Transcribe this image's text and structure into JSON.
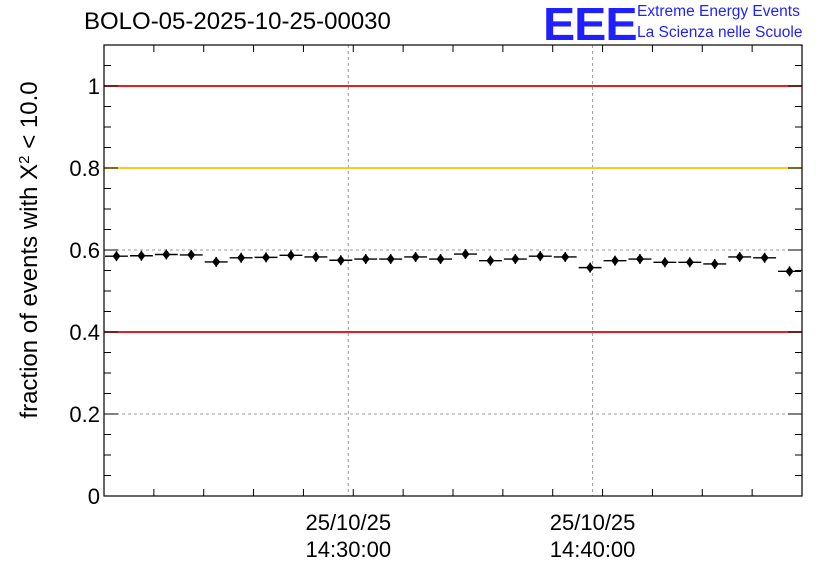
{
  "title": "BOLO-05-2025-10-25-00030",
  "logo": {
    "mark": "EEE",
    "line1": "Extreme Energy Events",
    "line2": "La Scienza nelle Scuole"
  },
  "chart_data": {
    "type": "scatter",
    "ylabel_parts": [
      "fraction of events with X",
      "2",
      " < 10.0"
    ],
    "ylim": [
      0,
      1.1
    ],
    "y_ticks": [
      0,
      0.2,
      0.4,
      0.6,
      0.8,
      1
    ],
    "y_tick_labels": [
      "0",
      "0.2",
      "0.4",
      "0.6",
      "0.8",
      "1"
    ],
    "x_ticks": [
      {
        "at": 0.35,
        "date": "25/10/25",
        "time": "14:30:00"
      },
      {
        "at": 0.7,
        "date": "25/10/25",
        "time": "14:40:00"
      }
    ],
    "reference_lines": [
      {
        "y": 1.0,
        "color": "#e00000"
      },
      {
        "y": 0.8,
        "color": "#ffc000"
      },
      {
        "y": 0.4,
        "color": "#e00000"
      }
    ],
    "grid": true,
    "series": [
      {
        "marker": "diamond",
        "color": "#000000",
        "values": [
          0.585,
          0.586,
          0.589,
          0.588,
          0.571,
          0.581,
          0.582,
          0.587,
          0.583,
          0.575,
          0.578,
          0.578,
          0.583,
          0.578,
          0.59,
          0.574,
          0.578,
          0.585,
          0.583,
          0.557,
          0.574,
          0.578,
          0.57,
          0.57,
          0.566,
          0.583,
          0.581,
          0.548
        ]
      }
    ]
  }
}
